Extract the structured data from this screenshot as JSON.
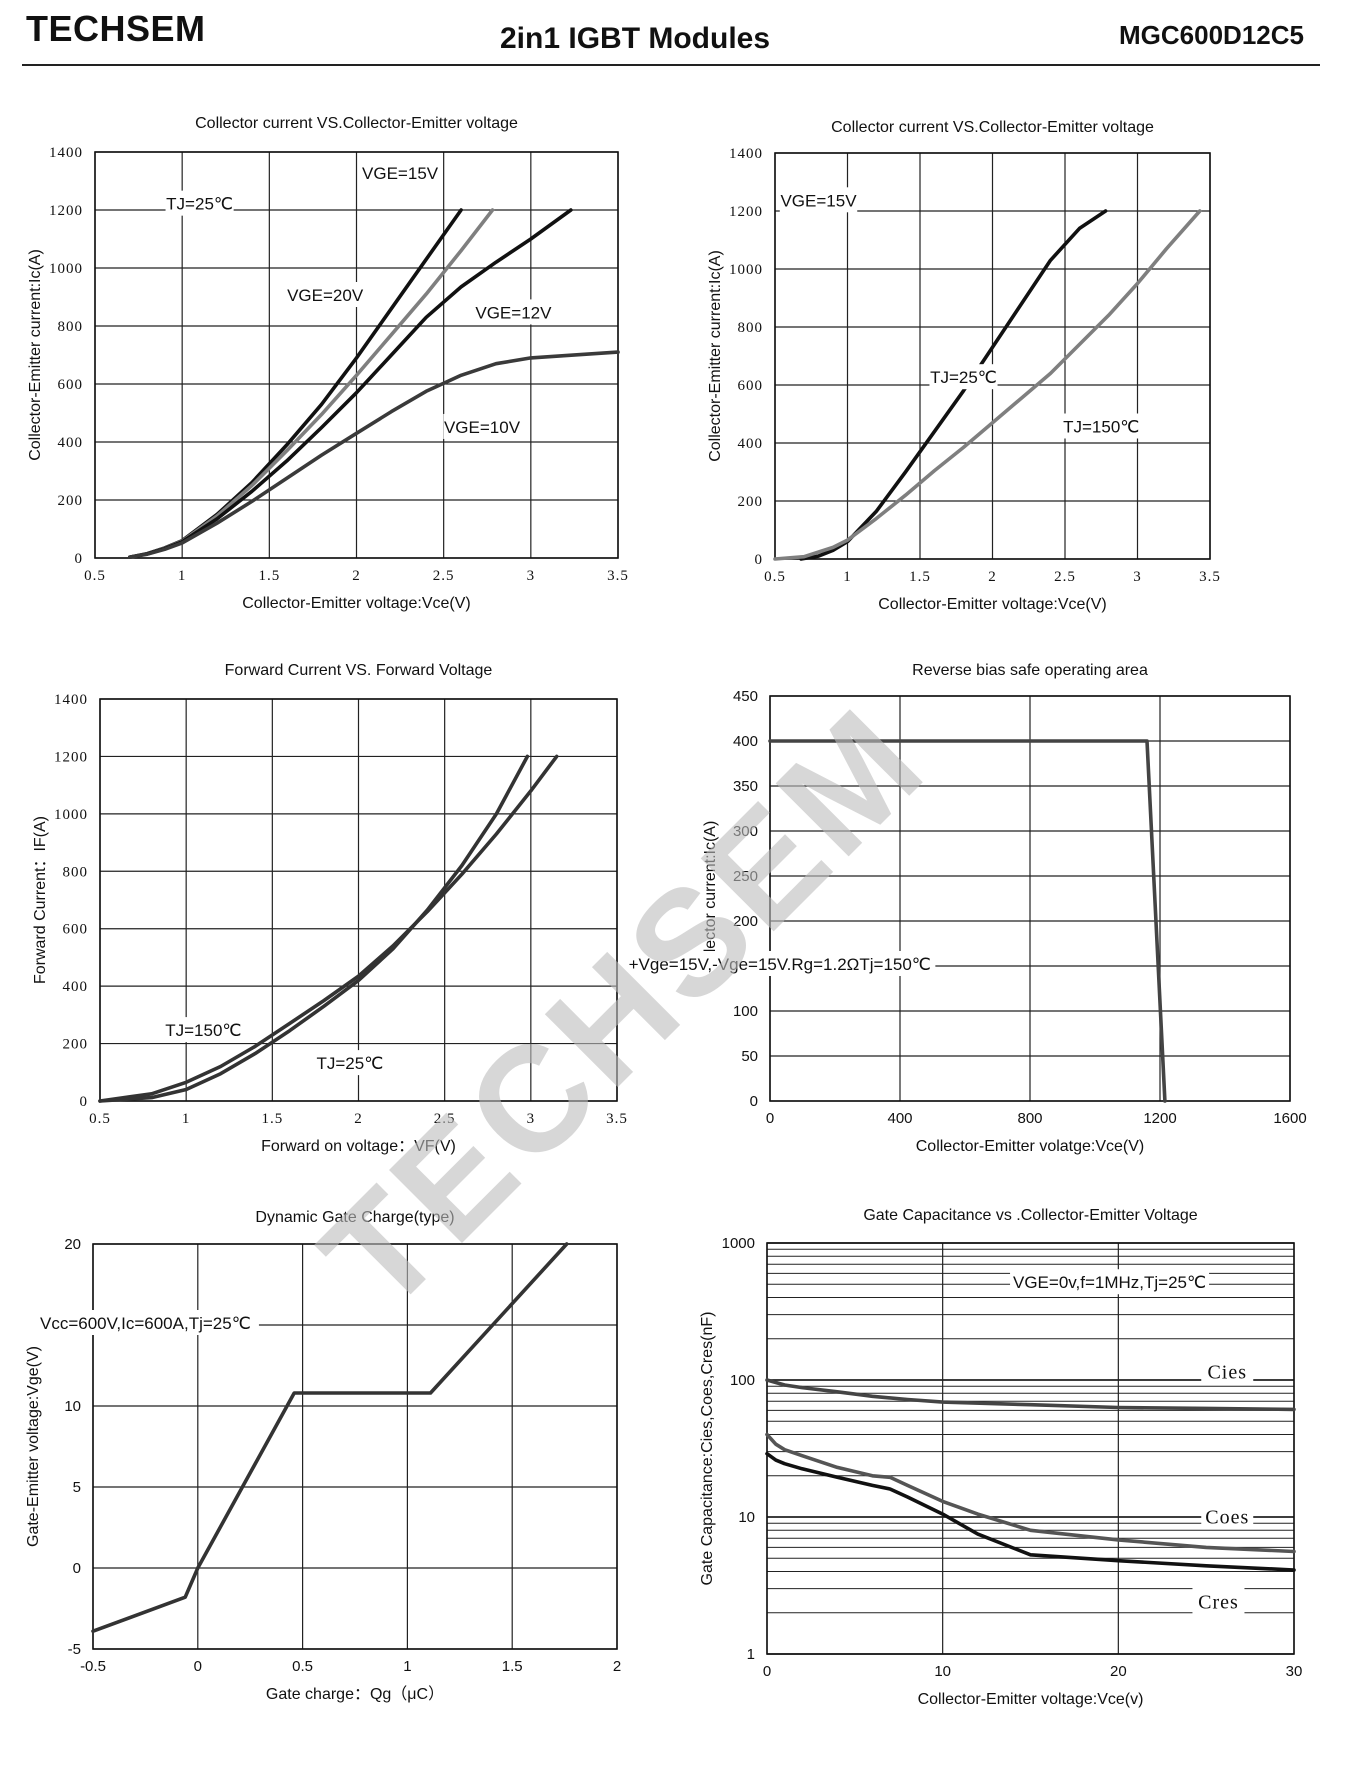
{
  "header": {
    "brand": "TECHSEM",
    "title": "2in1 IGBT Modules",
    "part_number": "MGC600D12C5"
  },
  "watermark": "TECHSEM",
  "chart_data": [
    {
      "id": "c1",
      "type": "line",
      "title": "Collector current VS.Collector-Emitter voltage",
      "xlabel": "Collector-Emitter voltage:Vce(V)",
      "ylabel": "Collector-Emitter current:Ic(A)",
      "xlim": [
        0.5,
        3.5
      ],
      "ylim": [
        0,
        1400
      ],
      "xticks": [
        0.5,
        1,
        1.5,
        2,
        2.5,
        3,
        3.5
      ],
      "xtick_labels": [
        "0.5",
        "1",
        "1.5",
        "2",
        "2.5",
        "3",
        "3.5"
      ],
      "yticks": [
        0,
        200,
        400,
        600,
        800,
        1000,
        1200,
        1400
      ],
      "ytick_labels": [
        "0",
        "200",
        "400",
        "600",
        "800",
        "1000",
        "1200",
        "1400"
      ],
      "grid": true,
      "series": [
        {
          "name": "VGE=20V",
          "color": "#111111",
          "x": [
            0.7,
            0.8,
            0.9,
            1.0,
            1.2,
            1.4,
            1.6,
            1.8,
            2.0,
            2.2,
            2.4,
            2.6
          ],
          "y": [
            3,
            15,
            35,
            60,
            150,
            260,
            390,
            530,
            690,
            860,
            1030,
            1200
          ]
        },
        {
          "name": "VGE=15V",
          "color": "#7f7f7f",
          "x": [
            0.7,
            0.8,
            0.9,
            1.0,
            1.2,
            1.4,
            1.6,
            1.8,
            2.0,
            2.2,
            2.4,
            2.6,
            2.78
          ],
          "y": [
            3,
            14,
            33,
            58,
            145,
            250,
            370,
            495,
            630,
            770,
            910,
            1060,
            1200
          ]
        },
        {
          "name": "VGE=12V",
          "color": "#111111",
          "x": [
            0.7,
            0.8,
            0.9,
            1.0,
            1.2,
            1.4,
            1.6,
            1.8,
            2.0,
            2.2,
            2.4,
            2.6,
            2.8,
            3.0,
            3.23
          ],
          "y": [
            3,
            14,
            32,
            56,
            135,
            230,
            335,
            450,
            570,
            700,
            830,
            935,
            1020,
            1100,
            1200
          ]
        },
        {
          "name": "VGE=10V",
          "color": "#3a3a3a",
          "x": [
            0.7,
            0.8,
            0.9,
            1.0,
            1.2,
            1.4,
            1.6,
            1.8,
            2.0,
            2.2,
            2.4,
            2.6,
            2.8,
            3.0,
            3.2,
            3.5
          ],
          "y": [
            3,
            13,
            30,
            52,
            120,
            195,
            275,
            355,
            430,
            505,
            575,
            630,
            670,
            690,
            698,
            710
          ]
        }
      ],
      "annotations": [
        {
          "text": "TJ=25℃",
          "x": 1.1,
          "y": 1215
        },
        {
          "text": "VGE=15V",
          "x": 2.25,
          "y": 1320
        },
        {
          "text": "VGE=20V",
          "x": 1.82,
          "y": 900
        },
        {
          "text": "VGE=12V",
          "x": 2.9,
          "y": 840
        },
        {
          "text": "VGE=10V",
          "x": 2.72,
          "y": 445
        }
      ]
    },
    {
      "id": "c2",
      "type": "line",
      "title": "Collector current VS.Collector-Emitter voltage",
      "xlabel": "Collector-Emitter voltage:Vce(V)",
      "ylabel": "Collector-Emitter current:Ic(A)",
      "xlim": [
        0.5,
        3.5
      ],
      "ylim": [
        0,
        1400
      ],
      "xticks": [
        0.5,
        1,
        1.5,
        2,
        2.5,
        3,
        3.5
      ],
      "xtick_labels": [
        "0.5",
        "1",
        "1.5",
        "2",
        "2.5",
        "3",
        "3.5"
      ],
      "yticks": [
        0,
        200,
        400,
        600,
        800,
        1000,
        1200,
        1400
      ],
      "ytick_labels": [
        "0",
        "200",
        "400",
        "600",
        "800",
        "1000",
        "1200",
        "1400"
      ],
      "grid": true,
      "series": [
        {
          "name": "TJ=25℃",
          "color": "#111111",
          "x": [
            0.68,
            0.8,
            0.9,
            1.0,
            1.2,
            1.4,
            1.6,
            1.8,
            2.0,
            2.2,
            2.4,
            2.6,
            2.78
          ],
          "y": [
            0,
            10,
            30,
            60,
            165,
            300,
            440,
            580,
            730,
            880,
            1030,
            1140,
            1200
          ]
        },
        {
          "name": "TJ=150℃",
          "color": "#7f7f7f",
          "x": [
            0.5,
            0.7,
            0.9,
            1.0,
            1.2,
            1.4,
            1.6,
            1.8,
            2.0,
            2.2,
            2.4,
            2.6,
            2.8,
            3.0,
            3.2,
            3.43
          ],
          "y": [
            0,
            8,
            40,
            65,
            140,
            220,
            305,
            385,
            470,
            555,
            640,
            740,
            840,
            950,
            1070,
            1200
          ]
        }
      ],
      "annotations": [
        {
          "text": "VGE=15V",
          "x": 0.8,
          "y": 1230
        },
        {
          "text": "TJ=25℃",
          "x": 1.8,
          "y": 620
        },
        {
          "text": "TJ=150℃",
          "x": 2.75,
          "y": 450
        }
      ]
    },
    {
      "id": "c3",
      "type": "line",
      "title": "Forward Current VS. Forward Voltage",
      "xlabel": "Forward on voltage：VF(V)",
      "ylabel": "Forward Current：IF(A)",
      "xlim": [
        0.5,
        3.5
      ],
      "ylim": [
        0,
        1400
      ],
      "xticks": [
        0.5,
        1,
        1.5,
        2,
        2.5,
        3,
        3.5
      ],
      "xtick_labels": [
        "0.5",
        "1",
        "1.5",
        "2",
        "2.5",
        "3",
        "3.5"
      ],
      "yticks": [
        0,
        200,
        400,
        600,
        800,
        1000,
        1200,
        1400
      ],
      "ytick_labels": [
        "0",
        "200",
        "400",
        "600",
        "800",
        "1000",
        "1200",
        "1400"
      ],
      "grid": true,
      "series": [
        {
          "name": "TJ=150℃",
          "color": "#333333",
          "x": [
            0.5,
            0.8,
            1.0,
            1.2,
            1.4,
            1.6,
            1.8,
            2.0,
            2.2,
            2.4,
            2.6,
            2.8,
            3.0,
            3.15
          ],
          "y": [
            0,
            25,
            65,
            120,
            190,
            270,
            350,
            435,
            540,
            660,
            790,
            930,
            1080,
            1200
          ]
        },
        {
          "name": "TJ=25℃",
          "color": "#333333",
          "x": [
            0.5,
            0.8,
            1.0,
            1.2,
            1.4,
            1.6,
            1.8,
            2.0,
            2.2,
            2.4,
            2.6,
            2.8,
            2.98
          ],
          "y": [
            0,
            12,
            40,
            95,
            165,
            245,
            330,
            420,
            530,
            665,
            820,
            1000,
            1200
          ]
        }
      ],
      "annotations": [
        {
          "text": "TJ=150℃",
          "x": 1.1,
          "y": 240
        },
        {
          "text": "TJ=25℃",
          "x": 1.95,
          "y": 125
        }
      ]
    },
    {
      "id": "c4",
      "type": "line",
      "title": "Reverse bias safe operating area",
      "xlabel": "Collector-Emitter volatge:Vce(V)",
      "ylabel": "Collector current:Ic(A)",
      "xlim": [
        0,
        1600
      ],
      "ylim": [
        0,
        450
      ],
      "xticks": [
        0,
        400,
        800,
        1200,
        1600
      ],
      "xtick_labels": [
        "0",
        "400",
        "800",
        "1200",
        "1600"
      ],
      "yticks": [
        0,
        50,
        100,
        150,
        200,
        250,
        300,
        350,
        400,
        450
      ],
      "ytick_labels": [
        "0",
        "50",
        "100",
        "150",
        "200",
        "250",
        "300",
        "350",
        "400",
        "450"
      ],
      "grid": true,
      "series": [
        {
          "name": "",
          "color": "#444444",
          "x": [
            0,
            1160,
            1215
          ],
          "y": [
            400,
            400,
            0
          ]
        }
      ],
      "annotations": [
        {
          "text": "+Vge=15V,-Vge=15V.Rg=1.2ΩTj=150℃",
          "x": 30,
          "y": 150
        }
      ]
    },
    {
      "id": "c5",
      "type": "line",
      "title": "Dynamic Gate Charge(type)",
      "xlabel": "Gate charge：Qg（μC）",
      "ylabel": "Gate-Emitter voltage:Vge(V)",
      "xlim": [
        -0.5,
        2
      ],
      "ylim": [
        -5,
        20
      ],
      "xticks": [
        -0.5,
        0,
        0.5,
        1,
        1.5,
        2
      ],
      "xtick_labels": [
        "-0.5",
        "0",
        "0.5",
        "1",
        "1.5",
        "2"
      ],
      "yticks": [
        -5,
        0,
        5,
        10,
        15,
        20
      ],
      "ytick_labels": [
        "-5",
        "0",
        "5",
        "10",
        "15",
        "20"
      ],
      "grid": true,
      "series": [
        {
          "name": "",
          "color": "#333333",
          "x": [
            -0.5,
            -0.06,
            0.0,
            0.46,
            1.11,
            1.76
          ],
          "y": [
            -3.9,
            -1.8,
            0.0,
            10.8,
            10.8,
            20
          ]
        }
      ],
      "annotations": [
        {
          "text": "Vcc=600V,Ic=600A,Tj=25℃",
          "x": -0.25,
          "y": 15
        }
      ]
    },
    {
      "id": "c6",
      "type": "line",
      "title": "Gate Capacitance vs .Collector-Emitter Voltage",
      "xlabel": "Collector-Emitter voltage:Vce(v)",
      "ylabel": "Gate Capacitance:Cies,Coes,Cres(nF)",
      "xlim": [
        0,
        30
      ],
      "ylim": [
        1,
        1000
      ],
      "yscale": "log",
      "xticks": [
        0,
        10,
        20,
        30
      ],
      "xtick_labels": [
        "0",
        "10",
        "20",
        "30"
      ],
      "yticks": [
        1,
        10,
        100,
        1000
      ],
      "ytick_labels": [
        "1",
        "10",
        "100",
        "1000"
      ],
      "grid": true,
      "series": [
        {
          "name": "Cies",
          "color": "#444444",
          "x": [
            0,
            1,
            2,
            4,
            6,
            8,
            10,
            15,
            20,
            25,
            30
          ],
          "y": [
            100,
            92,
            88,
            82,
            76,
            72,
            69,
            66,
            63,
            62,
            61
          ]
        },
        {
          "name": "Coes",
          "color": "#555555",
          "x": [
            0,
            0.5,
            1,
            2,
            4,
            6,
            7,
            8,
            10,
            12,
            15,
            20,
            25,
            30
          ],
          "y": [
            40,
            34,
            31,
            28,
            23,
            20,
            19.5,
            17,
            13,
            10.5,
            8,
            6.8,
            6,
            5.6
          ]
        },
        {
          "name": "Cres",
          "color": "#111111",
          "x": [
            0,
            0.5,
            1,
            2,
            4,
            6,
            7,
            8,
            10,
            12,
            15,
            20,
            25,
            30
          ],
          "y": [
            29,
            26,
            24.5,
            22.5,
            19.5,
            17,
            16,
            14,
            10.5,
            7.5,
            5.3,
            4.8,
            4.4,
            4.1
          ]
        }
      ],
      "annotations": [
        {
          "text": "VGE=0v,f=1MHz,Tj=25℃",
          "x": 19.5,
          "y": 500
        },
        {
          "text": "Cies",
          "x": 26.2,
          "y": 110
        },
        {
          "text": "Coes",
          "x": 26.2,
          "y": 9.6
        },
        {
          "text": "Cres",
          "x": 25.7,
          "y": 2.3
        }
      ]
    }
  ]
}
